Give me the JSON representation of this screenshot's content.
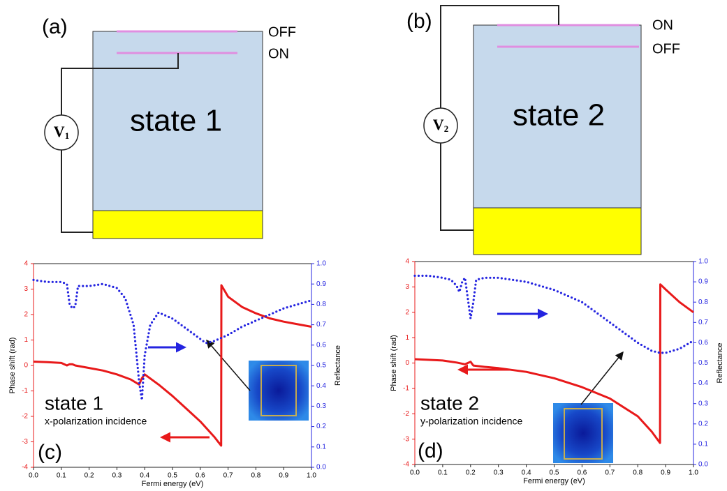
{
  "diagrams": [
    {
      "label": "(a)",
      "state": "state 1",
      "top_line": "OFF",
      "second_line": "ON",
      "source": "V",
      "subscript": "1"
    },
    {
      "label": "(b)",
      "state": "state 2",
      "top_line": "ON",
      "second_line": "OFF",
      "source": "V",
      "subscript": "2"
    }
  ],
  "chart_data": [
    {
      "type": "line",
      "panel_label": "(c)",
      "annotations": [
        "state 1",
        "x-polarization incidence"
      ],
      "x_label": "Fermi energy (eV)",
      "y_label": "Phase shift (rad)",
      "y2_label": "Reflectance",
      "xlim": [
        0,
        1
      ],
      "xticks": [
        {
          "value": 0,
          "label": "0.0"
        },
        0.1,
        0.2,
        0.3,
        0.4,
        0.5,
        0.6,
        0.7,
        0.8,
        0.9,
        {
          "value": 1,
          "label": "1.0"
        }
      ],
      "ylim": [
        -4,
        4
      ],
      "yticks": [
        -4,
        -3,
        -2,
        -1,
        0,
        1,
        2,
        3,
        4
      ],
      "y2lim": [
        0,
        1
      ],
      "y2ticks": [
        {
          "value": 0,
          "label": "0.0"
        },
        0.1,
        0.2,
        0.3,
        0.4,
        0.5,
        0.6,
        0.7,
        0.8,
        0.9,
        {
          "value": 1,
          "label": "1.0"
        }
      ],
      "series": [
        {
          "color": "#e8191a",
          "style": "solid",
          "x": [
            0,
            0.05,
            0.1,
            0.12,
            0.13,
            0.14,
            0.15,
            0.2,
            0.25,
            0.3,
            0.35,
            0.38,
            0.39,
            0.4,
            0.45,
            0.5,
            0.55,
            0.6,
            0.65,
            0.675,
            0.676,
            0.7,
            0.75,
            0.8,
            0.85,
            0.9,
            0.95,
            1.0
          ],
          "values": [
            0.15,
            0.13,
            0.1,
            0,
            0.05,
            0.05,
            0,
            -0.1,
            -0.2,
            -0.35,
            -0.55,
            -0.75,
            -0.5,
            -0.35,
            -0.75,
            -1.2,
            -1.7,
            -2.2,
            -2.8,
            -3.15,
            3.15,
            2.7,
            2.3,
            2.05,
            1.85,
            1.72,
            1.62,
            1.52
          ]
        },
        {
          "color": "#2424e0",
          "style": "dotted",
          "axis": "y2",
          "x": [
            0,
            0.05,
            0.1,
            0.12,
            0.13,
            0.14,
            0.15,
            0.16,
            0.2,
            0.25,
            0.3,
            0.33,
            0.36,
            0.38,
            0.39,
            0.4,
            0.42,
            0.45,
            0.5,
            0.55,
            0.6,
            0.62,
            0.65,
            0.7,
            0.75,
            0.8,
            0.85,
            0.9,
            0.95,
            1.0
          ],
          "values": [
            0.92,
            0.91,
            0.91,
            0.9,
            0.8,
            0.78,
            0.79,
            0.89,
            0.89,
            0.9,
            0.88,
            0.83,
            0.7,
            0.42,
            0.33,
            0.55,
            0.7,
            0.76,
            0.73,
            0.68,
            0.63,
            0.61,
            0.62,
            0.65,
            0.69,
            0.72,
            0.75,
            0.78,
            0.8,
            0.82
          ]
        }
      ]
    },
    {
      "type": "line",
      "panel_label": "(d)",
      "annotations": [
        "state 2",
        "y-polarization incidence"
      ],
      "x_label": "Fermi energy (eV)",
      "y_label": "Phase shift (rad)",
      "y2_label": "Reflectance",
      "xlim": [
        0,
        1
      ],
      "xticks": [
        {
          "value": 0,
          "label": "0.0"
        },
        0.1,
        0.2,
        0.3,
        0.4,
        0.5,
        0.6,
        0.7,
        0.8,
        0.9,
        {
          "value": 1,
          "label": "1.0"
        }
      ],
      "ylim": [
        -4,
        4
      ],
      "yticks": [
        -4,
        -3,
        -2,
        -1,
        0,
        1,
        2,
        3,
        4
      ],
      "y2lim": [
        0,
        1
      ],
      "y2ticks": [
        {
          "value": 0,
          "label": "0.0"
        },
        0.1,
        0.2,
        0.3,
        0.4,
        0.5,
        0.6,
        0.7,
        0.8,
        0.9,
        {
          "value": 1,
          "label": "1.0"
        }
      ],
      "series": [
        {
          "color": "#e8191a",
          "style": "solid",
          "x": [
            0,
            0.1,
            0.15,
            0.18,
            0.2,
            0.21,
            0.25,
            0.3,
            0.4,
            0.5,
            0.6,
            0.7,
            0.8,
            0.85,
            0.88,
            0.881,
            0.9,
            0.95,
            1.0
          ],
          "values": [
            0.15,
            0.1,
            0.02,
            -0.05,
            0.05,
            -0.1,
            -0.15,
            -0.2,
            -0.35,
            -0.6,
            -0.95,
            -1.4,
            -2.1,
            -2.7,
            -3.15,
            3.1,
            2.9,
            2.4,
            2.0
          ]
        },
        {
          "color": "#2424e0",
          "style": "dotted",
          "axis": "y2",
          "x": [
            0,
            0.05,
            0.1,
            0.13,
            0.15,
            0.16,
            0.17,
            0.18,
            0.2,
            0.21,
            0.22,
            0.25,
            0.3,
            0.4,
            0.5,
            0.6,
            0.7,
            0.8,
            0.85,
            0.88,
            0.9,
            0.95,
            1.0
          ],
          "values": [
            0.93,
            0.93,
            0.92,
            0.91,
            0.88,
            0.85,
            0.9,
            0.92,
            0.72,
            0.8,
            0.91,
            0.92,
            0.92,
            0.9,
            0.86,
            0.8,
            0.7,
            0.6,
            0.56,
            0.55,
            0.55,
            0.57,
            0.61
          ]
        }
      ]
    }
  ]
}
